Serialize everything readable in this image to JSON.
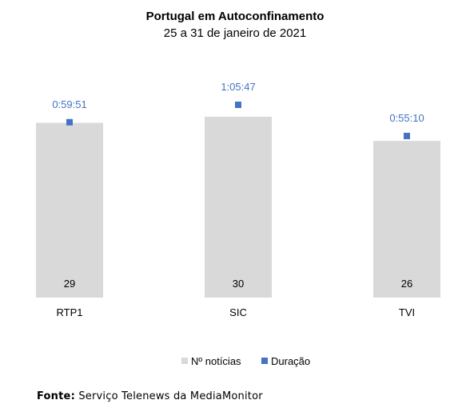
{
  "chart_data": {
    "type": "bar",
    "title": "Portugal em Autoconfinamento",
    "subtitle": "25 a 31 de janeiro de 2021",
    "categories": [
      "RTP1",
      "SIC",
      "TVI"
    ],
    "series": [
      {
        "name": "Nº notícias",
        "type": "bar",
        "values": [
          29,
          30,
          26
        ],
        "labels": [
          "29",
          "30",
          "26"
        ],
        "color": "#d9d9d9"
      },
      {
        "name": "Duração",
        "type": "marker",
        "values": [
          3591,
          3947,
          3310
        ],
        "labels": [
          "0:59:51",
          "1:05:47",
          "0:55:10"
        ],
        "color": "#4472c4"
      }
    ],
    "ylim_bars": [
      0,
      30
    ],
    "ylim_duration": [
      0,
      3947
    ],
    "grid": false,
    "legend": "bottom"
  },
  "source": {
    "label": "Fonte",
    "text": "Serviço Telenews da MediaMonitor"
  },
  "colors": {
    "bar": "#d9d9d9",
    "marker": "#4472c4",
    "marker_label": "#4472c4"
  }
}
